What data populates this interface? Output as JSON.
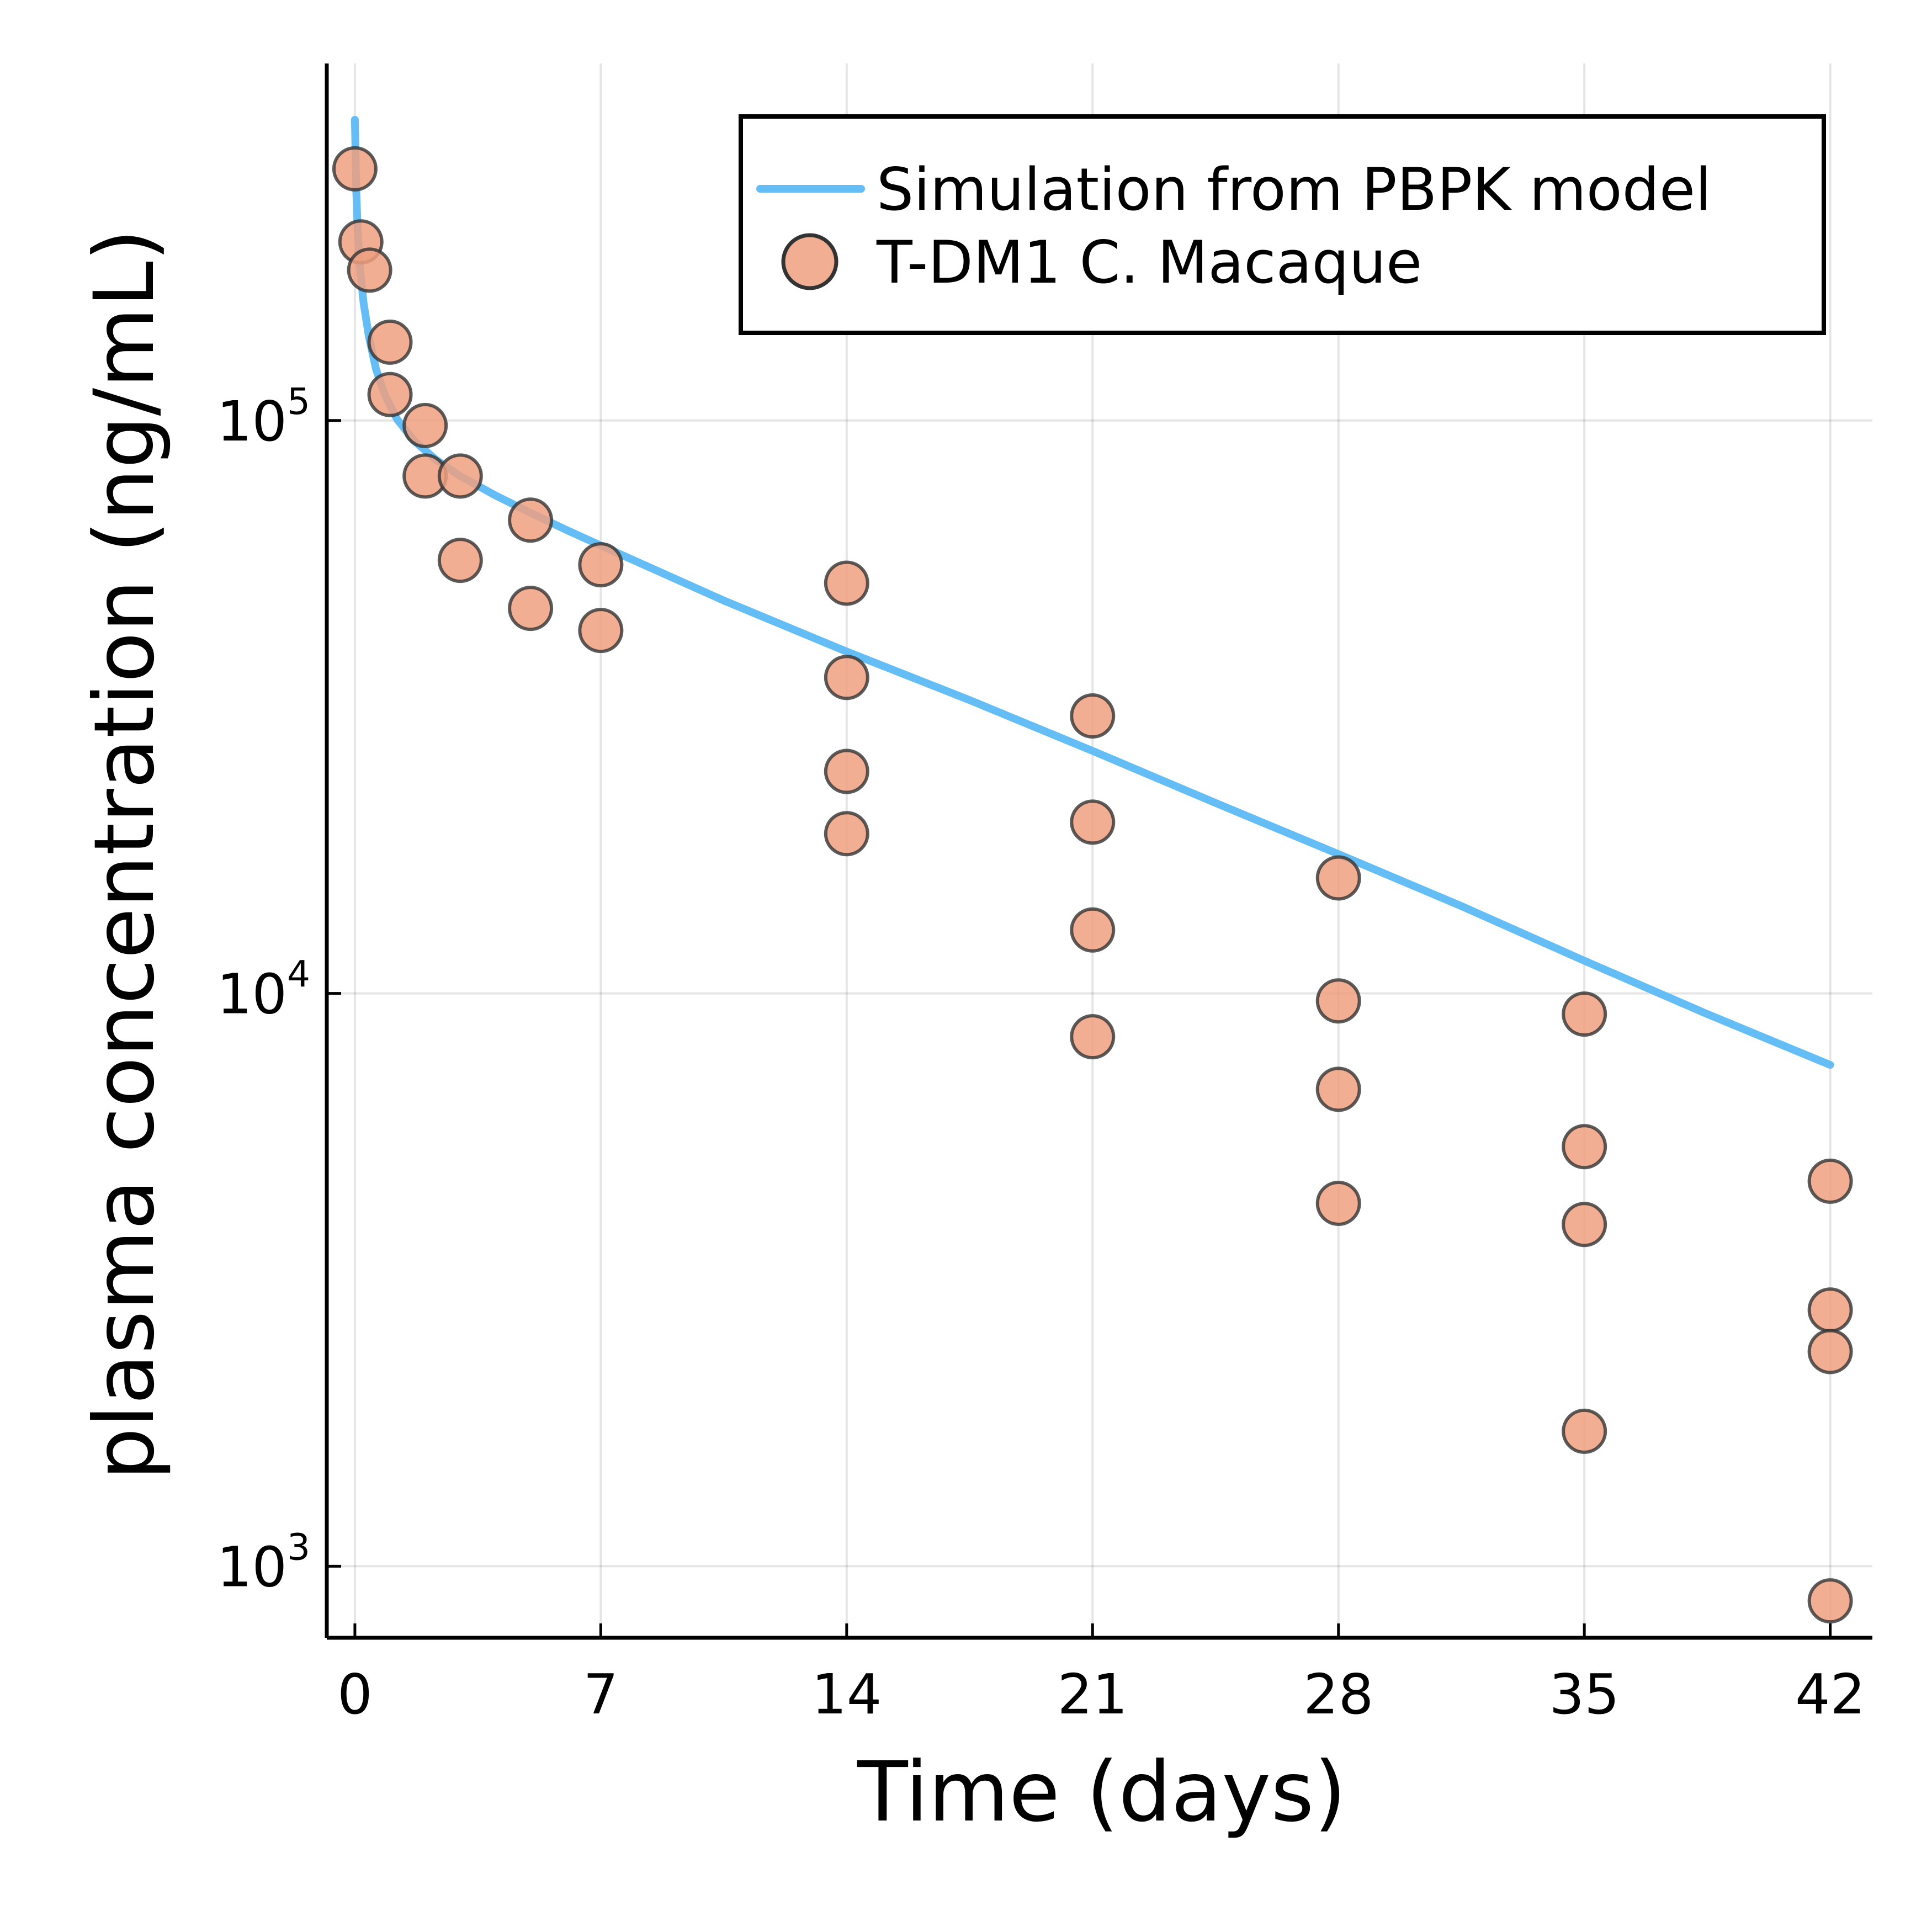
{
  "chart_data": {
    "type": "scatter",
    "xlabel": "Time (days)",
    "ylabel": "plasma concentration (ng/mL)",
    "xlim": [
      -0.8,
      43.2
    ],
    "ylim": [
      750,
      420000
    ],
    "y_scale": "log",
    "grid": true,
    "legend_position": "top-right",
    "x_ticks": [
      {
        "value": 0,
        "label": "0"
      },
      {
        "value": 7,
        "label": "7"
      },
      {
        "value": 14,
        "label": "14"
      },
      {
        "value": 21,
        "label": "21"
      },
      {
        "value": 28,
        "label": "28"
      },
      {
        "value": 35,
        "label": "35"
      },
      {
        "value": 42,
        "label": "42"
      }
    ],
    "y_ticks": [
      {
        "value": 1000,
        "base": "10",
        "exp": "3"
      },
      {
        "value": 10000,
        "base": "10",
        "exp": "4"
      },
      {
        "value": 100000,
        "base": "10",
        "exp": "5"
      }
    ],
    "series": [
      {
        "name": "Simulation from PBPK model",
        "type": "line",
        "color": "#64bdf4",
        "points": [
          [
            0.0,
            335000
          ],
          [
            0.04,
            250000
          ],
          [
            0.08,
            215000
          ],
          [
            0.15,
            183000
          ],
          [
            0.25,
            160000
          ],
          [
            0.4,
            140000
          ],
          [
            0.6,
            123000
          ],
          [
            0.85,
            111000
          ],
          [
            1.2,
            100500
          ],
          [
            1.7,
            92000
          ],
          [
            2.3,
            85500
          ],
          [
            3.0,
            80000
          ],
          [
            4.0,
            74000
          ],
          [
            5.0,
            69000
          ],
          [
            6.0,
            64500
          ],
          [
            7.0,
            60500
          ],
          [
            10.5,
            48500
          ],
          [
            14.0,
            39500
          ],
          [
            17.5,
            32500
          ],
          [
            21.0,
            26500
          ],
          [
            24.5,
            21500
          ],
          [
            28.0,
            17500
          ],
          [
            31.5,
            14200
          ],
          [
            35.0,
            11400
          ],
          [
            38.5,
            9200
          ],
          [
            42.0,
            7500
          ]
        ]
      },
      {
        "name": "T-DM1 C. Macaque",
        "type": "scatter",
        "color": "#eea080",
        "edge_color": "#333333",
        "points": [
          [
            0.0,
            275000
          ],
          [
            0.17,
            205000
          ],
          [
            0.42,
            183000
          ],
          [
            1.0,
            137000
          ],
          [
            1.0,
            111000
          ],
          [
            2.0,
            98000
          ],
          [
            2.0,
            80000
          ],
          [
            3.0,
            80000
          ],
          [
            3.0,
            57000
          ],
          [
            5.0,
            67000
          ],
          [
            5.0,
            47000
          ],
          [
            7.0,
            56000
          ],
          [
            7.0,
            43000
          ],
          [
            14.0,
            52000
          ],
          [
            14.0,
            35600
          ],
          [
            14.0,
            24400
          ],
          [
            14.0,
            19000
          ],
          [
            21.0,
            30500
          ],
          [
            21.0,
            19900
          ],
          [
            21.0,
            12900
          ],
          [
            21.0,
            8400
          ],
          [
            28.0,
            15900
          ],
          [
            28.0,
            9700
          ],
          [
            28.0,
            6800
          ],
          [
            28.0,
            4300
          ],
          [
            35.0,
            9200
          ],
          [
            35.0,
            5400
          ],
          [
            35.0,
            3950
          ],
          [
            35.0,
            1720
          ],
          [
            42.0,
            4700
          ],
          [
            42.0,
            2800
          ],
          [
            42.0,
            2370
          ],
          [
            42.0,
            870
          ]
        ]
      }
    ]
  }
}
